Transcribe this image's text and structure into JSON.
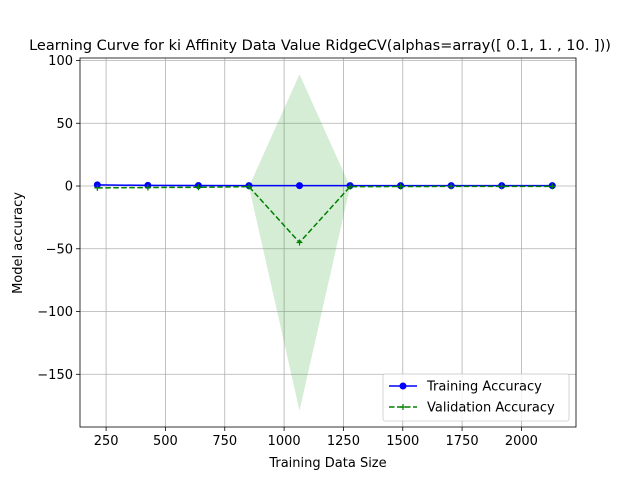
{
  "chart_data": {
    "type": "line",
    "title": "Learning Curve for ki Affinity Data Value RidgeCV(alphas=array([ 0.1,  1. , 10. ]))",
    "xlabel": "Training Data Size",
    "ylabel": "Model accuracy",
    "xlim": [
      140,
      2230
    ],
    "ylim": [
      -192,
      102
    ],
    "xticks": [
      250,
      500,
      750,
      1000,
      1250,
      1500,
      1750,
      2000
    ],
    "yticks": [
      100,
      50,
      0,
      -50,
      -100,
      -150
    ],
    "grid": true,
    "legend_position": "lower-right",
    "x": [
      213,
      426,
      639,
      852,
      1065,
      1278,
      1491,
      1704,
      1917,
      2130
    ],
    "series": [
      {
        "name": "Training Accuracy",
        "color": "#0000ff",
        "style": "solid",
        "marker": "circle",
        "values": [
          0.9,
          0.5,
          0.4,
          0.3,
          0.3,
          0.3,
          0.3,
          0.3,
          0.3,
          0.3
        ],
        "band_lower": [
          0.9,
          0.5,
          0.4,
          0.3,
          0.3,
          0.3,
          0.3,
          0.3,
          0.3,
          0.3
        ],
        "band_upper": [
          0.9,
          0.5,
          0.4,
          0.3,
          0.3,
          0.3,
          0.3,
          0.3,
          0.3,
          0.3
        ]
      },
      {
        "name": "Validation Accuracy",
        "color": "#008000",
        "style": "dashed",
        "marker": "plus",
        "values": [
          -1.5,
          -1.2,
          -1.0,
          -0.5,
          -45.0,
          -0.5,
          -0.4,
          -0.3,
          -0.3,
          -0.3
        ],
        "band_color": "#2ca02c",
        "band_lower": [
          -1.5,
          -1.2,
          -1.0,
          -0.5,
          -179.0,
          -0.5,
          -0.4,
          -0.3,
          -0.3,
          -0.3
        ],
        "band_upper": [
          -1.5,
          -1.2,
          -1.0,
          -0.5,
          89.0,
          -0.5,
          -0.4,
          -0.3,
          -0.3,
          -0.3
        ]
      }
    ]
  }
}
